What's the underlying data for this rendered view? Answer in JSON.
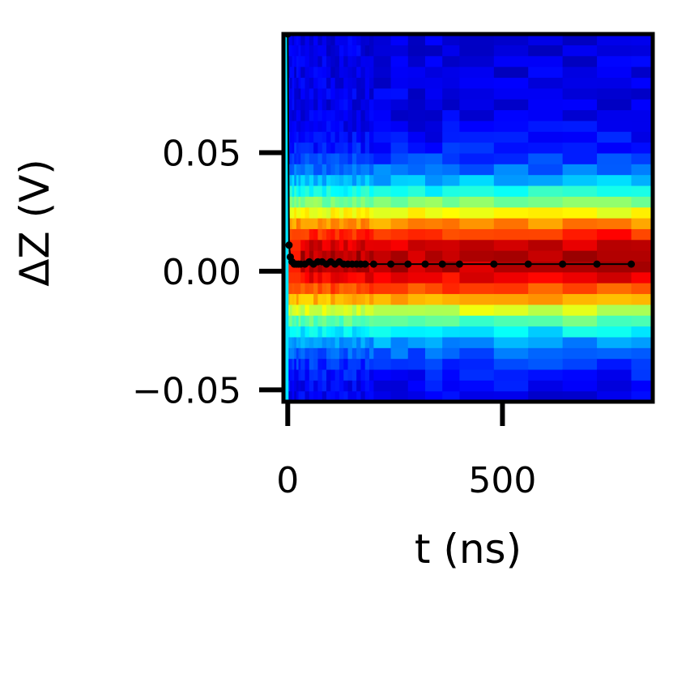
{
  "chart_data": {
    "type": "heatmap",
    "title": "",
    "xlabel": "t (ns)",
    "ylabel": "ΔZ (V)",
    "xlim": [
      -10,
      850
    ],
    "ylim": [
      -0.055,
      0.1
    ],
    "xticks": [
      {
        "value": 0,
        "label": "0"
      },
      {
        "value": 500,
        "label": "500"
      }
    ],
    "yticks": [
      {
        "value": -0.05,
        "label": "−0.05"
      },
      {
        "value": 0.0,
        "label": "0.00"
      },
      {
        "value": 0.05,
        "label": "0.05"
      }
    ],
    "grid": false,
    "legend": "none",
    "colormap": "jet",
    "heatmap": {
      "description_center_value": 0.005,
      "y_bins_from": -0.055,
      "y_bins_to": 0.1,
      "t_bins": [
        0,
        5,
        10,
        15,
        20,
        25,
        30,
        40,
        50,
        60,
        70,
        80,
        90,
        100,
        110,
        120,
        130,
        140,
        150,
        160,
        170,
        180,
        190,
        200,
        240,
        280,
        320,
        360,
        400,
        480,
        560,
        640,
        720,
        800,
        850
      ]
    },
    "series": [
      {
        "type": "line-with-markers",
        "color": "#000000",
        "x": [
          0,
          3,
          6,
          10,
          15,
          20,
          25,
          30,
          40,
          50,
          60,
          70,
          80,
          90,
          100,
          110,
          120,
          130,
          140,
          150,
          160,
          170,
          180,
          200,
          240,
          280,
          320,
          360,
          400,
          480,
          560,
          640,
          720,
          800
        ],
        "y": [
          0.1,
          0.011,
          0.006,
          0.004,
          0.003,
          0.003,
          0.003,
          0.003,
          0.003,
          0.004,
          0.003,
          0.004,
          0.004,
          0.003,
          0.004,
          0.003,
          0.004,
          0.003,
          0.003,
          0.003,
          0.003,
          0.003,
          0.003,
          0.003,
          0.003,
          0.003,
          0.003,
          0.003,
          0.003,
          0.003,
          0.003,
          0.003,
          0.003,
          0.003
        ]
      }
    ]
  }
}
